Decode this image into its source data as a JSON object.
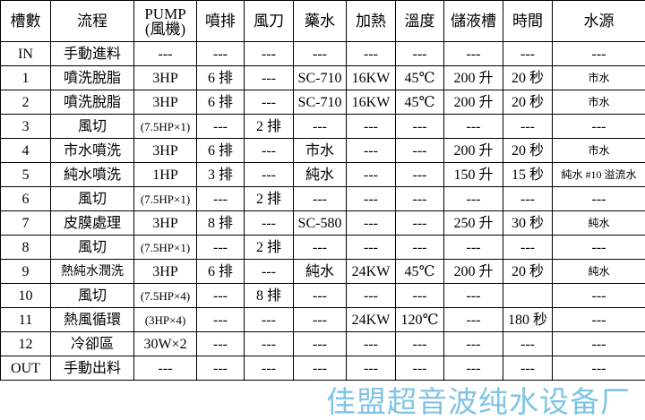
{
  "headers": [
    "槽數",
    "流程",
    "PUMP\n(風機)",
    "噴排",
    "風刀",
    "藥水",
    "加熱",
    "溫度",
    "儲液槽",
    "時間",
    "水源"
  ],
  "rows": [
    [
      "IN",
      "手動進料",
      "---",
      "---",
      "---",
      "---",
      "---",
      "---",
      "---",
      "---",
      "---"
    ],
    [
      "1",
      "噴洗脫脂",
      "3HP",
      "6 排",
      "---",
      "SC-710",
      "16KW",
      "45℃",
      "200 升",
      "20 秒",
      "市水"
    ],
    [
      "2",
      "噴洗脫脂",
      "3HP",
      "6 排",
      "---",
      "SC-710",
      "16KW",
      "45℃",
      "200 升",
      "20 秒",
      "市水"
    ],
    [
      "3",
      "風切",
      "(7.5HP×1)",
      "---",
      "2 排",
      "---",
      "---",
      "---",
      "---",
      "---",
      "---"
    ],
    [
      "4",
      "市水噴洗",
      "3HP",
      "6 排",
      "---",
      "市水",
      "---",
      "---",
      "200 升",
      "20 秒",
      "市水"
    ],
    [
      "5",
      "純水噴洗",
      "1HP",
      "3 排",
      "---",
      "純水",
      "---",
      "---",
      "150 升",
      "15 秒",
      "純水 #10 溢流水"
    ],
    [
      "6",
      "風切",
      "(7.5HP×1)",
      "---",
      "2 排",
      "---",
      "---",
      "---",
      "---",
      "---",
      "---"
    ],
    [
      "7",
      "皮膜處理",
      "3HP",
      "8 排",
      "---",
      "SC-580",
      "---",
      "---",
      "250 升",
      "30 秒",
      "純水"
    ],
    [
      "8",
      "風切",
      "(7.5HP×1)",
      "---",
      "2 排",
      "---",
      "---",
      "---",
      "---",
      "---",
      "---"
    ],
    [
      "9",
      "熱純水潤洗",
      "3HP",
      "6 排",
      "---",
      "純水",
      "24KW",
      "45℃",
      "200 升",
      "20 秒",
      "純水"
    ],
    [
      "10",
      "風切",
      "(7.5HP×4)",
      "---",
      "8 排",
      "---",
      "---",
      "---",
      "---",
      "",
      "---"
    ],
    [
      "11",
      "熱風循環",
      "(3HP×4)",
      "---",
      "---",
      "---",
      "24KW",
      "120℃",
      "---",
      "180 秒",
      "---"
    ],
    [
      "12",
      "冷卻區",
      "30W×2",
      "---",
      "---",
      "---",
      "---",
      "---",
      "---",
      "---",
      "---"
    ],
    [
      "OUT",
      "手動出料",
      "---",
      "---",
      "---",
      "---",
      "---",
      "---",
      "---",
      "---",
      "---"
    ]
  ],
  "watermark": "佳盟超音波纯水设备厂"
}
